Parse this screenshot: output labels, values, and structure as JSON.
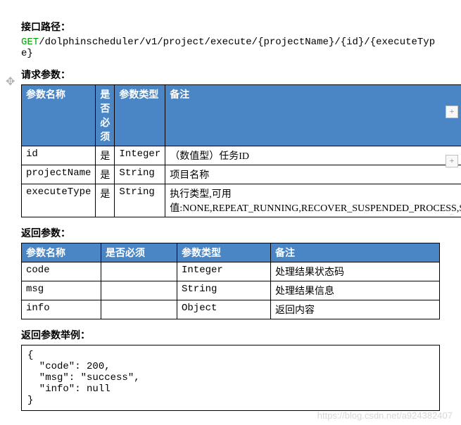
{
  "api": {
    "title_label": "接口路径：",
    "method": "GET",
    "path": "/dolphinscheduler/v1/project/execute/{projectName}/{id}/{executeType}"
  },
  "request": {
    "title": "请求参数：",
    "headers": {
      "name": "参数名称",
      "required": "是否必须",
      "type": "参数类型",
      "remark": "备注"
    },
    "rows": [
      {
        "name": "id",
        "required": "是",
        "type": "Integer",
        "remark": "（数值型）任务ID"
      },
      {
        "name": "projectName",
        "required": "是",
        "type": "String",
        "remark": "项目名称"
      },
      {
        "name": "executeType",
        "required": "是",
        "type": "String",
        "remark": "执行类型,可用值:NONE,REPEAT_RUNNING,RECOVER_SUSPENDED_PROCESS,START_FAILURE_TASK_PROCESS,STOP,PAUSE"
      }
    ]
  },
  "response": {
    "title": "返回参数：",
    "headers": {
      "name": "参数名称",
      "required": "是否必须",
      "type": "参数类型",
      "remark": "备注"
    },
    "rows": [
      {
        "name": "code",
        "required": "",
        "type": "Integer",
        "remark": "处理结果状态码"
      },
      {
        "name": "msg",
        "required": "",
        "type": "String",
        "remark": "处理结果信息"
      },
      {
        "name": "info",
        "required": "",
        "type": "Object",
        "remark": "返回内容"
      }
    ]
  },
  "example": {
    "title": "返回参数举例：",
    "body": "{\n  \"code\": 200,\n  \"msg\": \"success\",\n  \"info\": null\n}"
  },
  "watermark": "https://blog.csdn.net/a924382407",
  "colors": {
    "header_bg": "#4a86c5",
    "header_fg": "#ffffff",
    "method_fg": "#00a000",
    "border": "#000000",
    "background": "#ffffff"
  }
}
